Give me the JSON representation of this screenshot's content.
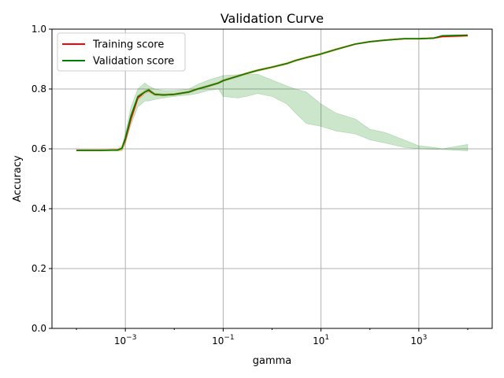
{
  "chart_data": {
    "type": "line",
    "title": "Validation Curve",
    "xlabel": "gamma",
    "ylabel": "Accuracy",
    "xscale": "log",
    "xlim": [
      3.16e-05,
      31623
    ],
    "ylim": [
      0.0,
      1.0
    ],
    "grid": true,
    "legend_position": "top-left",
    "xtick_labels": [
      {
        "value": 0.001,
        "base": "10",
        "exp": "−3"
      },
      {
        "value": 0.1,
        "base": "10",
        "exp": "−1"
      },
      {
        "value": 10,
        "base": "10",
        "exp": "1"
      },
      {
        "value": 1000,
        "base": "10",
        "exp": "3"
      }
    ],
    "ytick_labels": [
      {
        "value": 0.0,
        "label": "0.0"
      },
      {
        "value": 0.2,
        "label": "0.2"
      },
      {
        "value": 0.4,
        "label": "0.4"
      },
      {
        "value": 0.6,
        "label": "0.6"
      },
      {
        "value": 0.8,
        "label": "0.8"
      },
      {
        "value": 1.0,
        "label": "1.0"
      }
    ],
    "series": [
      {
        "name": "Training score",
        "color": "#ff0000",
        "band_color": "#ff8c00",
        "x": [
          0.0001,
          0.0003,
          0.0007,
          0.00085,
          0.001,
          0.0013,
          0.0018,
          0.0025,
          0.003,
          0.004,
          0.006,
          0.01,
          0.02,
          0.03,
          0.05,
          0.08,
          0.1,
          0.2,
          0.3,
          0.5,
          1,
          2,
          3,
          5,
          10,
          20,
          50,
          100,
          200,
          500,
          1000,
          2000,
          3000,
          10000
        ],
        "y": [
          0.595,
          0.595,
          0.596,
          0.602,
          0.63,
          0.7,
          0.77,
          0.79,
          0.795,
          0.782,
          0.78,
          0.782,
          0.79,
          0.8,
          0.81,
          0.82,
          0.828,
          0.843,
          0.852,
          0.862,
          0.873,
          0.885,
          0.895,
          0.905,
          0.917,
          0.932,
          0.95,
          0.958,
          0.963,
          0.968,
          0.968,
          0.97,
          0.975,
          0.978
        ],
        "band": [
          0.003,
          0.003,
          0.004,
          0.01,
          0.015,
          0.012,
          0.008,
          0.006,
          0.006,
          0.005,
          0.004,
          0.004,
          0.004,
          0.004,
          0.004,
          0.004,
          0.004,
          0.004,
          0.004,
          0.004,
          0.004,
          0.004,
          0.004,
          0.004,
          0.004,
          0.004,
          0.003,
          0.003,
          0.003,
          0.003,
          0.003,
          0.003,
          0.003,
          0.003
        ]
      },
      {
        "name": "Validation score",
        "color": "#008000",
        "band_color": "#008000",
        "x": [
          0.0001,
          0.0003,
          0.0007,
          0.00085,
          0.001,
          0.0013,
          0.0018,
          0.0025,
          0.003,
          0.004,
          0.006,
          0.01,
          0.02,
          0.03,
          0.05,
          0.08,
          0.1,
          0.2,
          0.3,
          0.5,
          1,
          2,
          3,
          5,
          10,
          20,
          50,
          100,
          200,
          500,
          1000,
          2000,
          3000,
          10000
        ],
        "y": [
          0.595,
          0.595,
          0.596,
          0.602,
          0.635,
          0.71,
          0.775,
          0.79,
          0.797,
          0.782,
          0.78,
          0.782,
          0.79,
          0.8,
          0.81,
          0.82,
          0.828,
          0.843,
          0.852,
          0.862,
          0.873,
          0.885,
          0.895,
          0.905,
          0.917,
          0.932,
          0.95,
          0.958,
          0.963,
          0.968,
          0.968,
          0.97,
          0.978,
          0.98
        ],
        "band_lower": [
          0.595,
          0.595,
          0.594,
          0.595,
          0.62,
          0.68,
          0.74,
          0.76,
          0.76,
          0.765,
          0.77,
          0.775,
          0.78,
          0.785,
          0.795,
          0.8,
          0.775,
          0.77,
          0.775,
          0.785,
          0.775,
          0.75,
          0.72,
          0.685,
          0.675,
          0.66,
          0.65,
          0.63,
          0.62,
          0.605,
          0.6,
          0.598,
          0.598,
          0.593
        ],
        "band_upper": [
          0.595,
          0.595,
          0.598,
          0.605,
          0.65,
          0.74,
          0.8,
          0.82,
          0.81,
          0.8,
          0.795,
          0.795,
          0.8,
          0.815,
          0.83,
          0.84,
          0.845,
          0.848,
          0.85,
          0.85,
          0.83,
          0.81,
          0.8,
          0.79,
          0.75,
          0.72,
          0.7,
          0.665,
          0.655,
          0.63,
          0.61,
          0.605,
          0.6,
          0.615
        ]
      }
    ]
  }
}
